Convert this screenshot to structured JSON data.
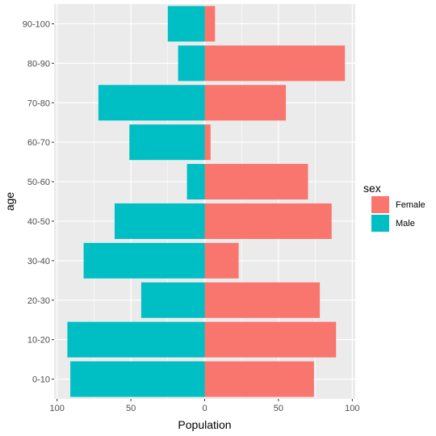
{
  "chart_data": {
    "type": "bar",
    "orientation": "horizontal",
    "xlabel": "Population",
    "ylabel": "age",
    "categories": [
      "0-10",
      "10-20",
      "20-30",
      "30-40",
      "40-50",
      "50-60",
      "60-70",
      "70-80",
      "80-90",
      "90-100"
    ],
    "series": [
      {
        "name": "Female",
        "values": [
          74,
          89,
          78,
          23,
          86,
          70,
          4,
          55,
          95,
          7
        ]
      },
      {
        "name": "Male",
        "values": [
          -91,
          -93,
          -43,
          -82,
          -61,
          -12,
          -51,
          -72,
          -18,
          -25
        ]
      }
    ],
    "xlim": [
      -102,
      102
    ],
    "xticks": [
      -100,
      -50,
      0,
      50,
      100
    ],
    "xtick_labels": [
      "100",
      "50",
      "0",
      "50",
      "100"
    ],
    "legend": {
      "title": "sex",
      "placement": "right",
      "entries": [
        "Female",
        "Male"
      ]
    },
    "grid": true,
    "colors": {
      "Female": "#F8766D",
      "Male": "#00BFC4",
      "panel_background": "#EBEBEB",
      "grid_major": "#FFFFFF"
    }
  }
}
